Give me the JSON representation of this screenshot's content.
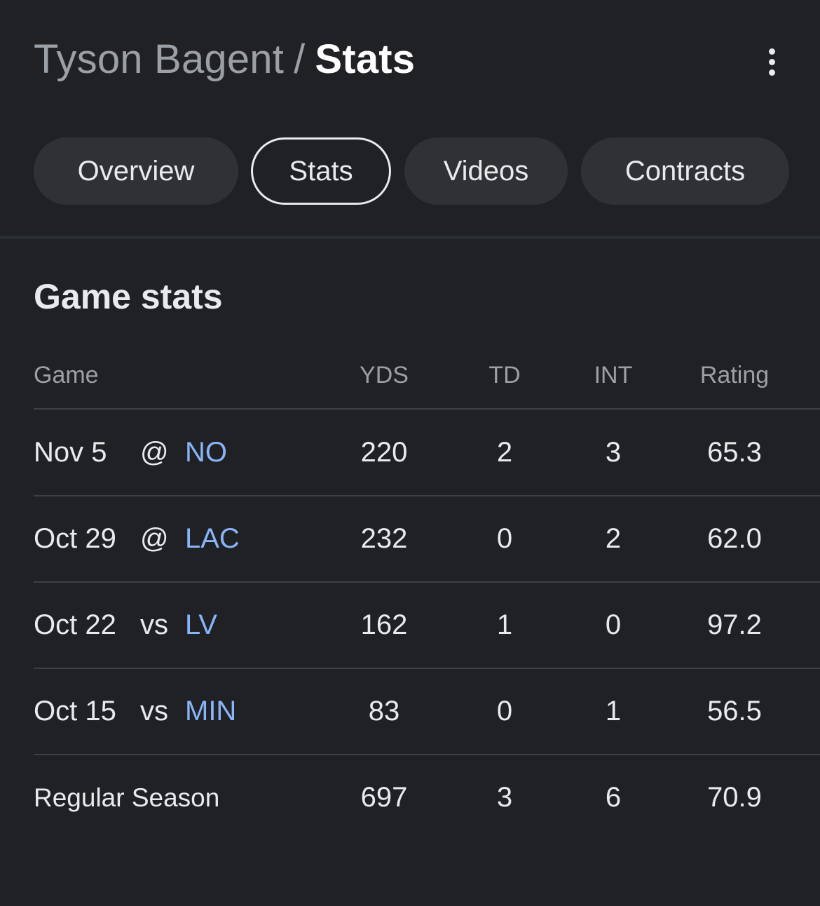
{
  "header": {
    "parent": "Tyson Bagent",
    "separator": "/",
    "current": "Stats",
    "more_icon": "more-vert-icon"
  },
  "tabs": [
    {
      "label": "Overview",
      "active": false
    },
    {
      "label": "Stats",
      "active": true
    },
    {
      "label": "Videos",
      "active": false
    },
    {
      "label": "Contracts",
      "active": false
    }
  ],
  "game_stats": {
    "title": "Game stats",
    "columns": {
      "game": "Game",
      "yds": "YDS",
      "td": "TD",
      "int": "INT",
      "rating": "Rating"
    },
    "rows": [
      {
        "date": "Nov 5",
        "loc": "@",
        "team": "NO",
        "yds": "220",
        "td": "2",
        "int": "3",
        "rating": "65.3"
      },
      {
        "date": "Oct 29",
        "loc": "@",
        "team": "LAC",
        "yds": "232",
        "td": "0",
        "int": "2",
        "rating": "62.0"
      },
      {
        "date": "Oct 22",
        "loc": "vs",
        "team": "LV",
        "yds": "162",
        "td": "1",
        "int": "0",
        "rating": "97.2"
      },
      {
        "date": "Oct 15",
        "loc": "vs",
        "team": "MIN",
        "yds": "83",
        "td": "0",
        "int": "1",
        "rating": "56.5"
      }
    ],
    "total": {
      "label": "Regular Season",
      "yds": "697",
      "td": "3",
      "int": "6",
      "rating": "70.9"
    }
  },
  "colors": {
    "background": "#202124",
    "team_link": "#8ab4f8",
    "muted_text": "#9aa0a6"
  }
}
